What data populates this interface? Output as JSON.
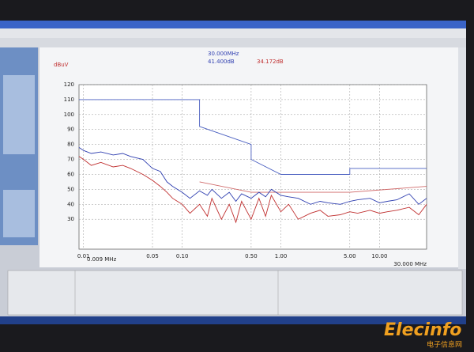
{
  "chart_data": {
    "type": "line",
    "unit_label": "dBuV",
    "marker_frequency": "30.000MHz",
    "marker_values": [
      "41.400dB",
      "34.172dB"
    ],
    "x_range_labels": [
      "0.009 MHz",
      "30.000 MHz"
    ],
    "log_x": true,
    "grid": true,
    "xlim": [
      0.009,
      30
    ],
    "xticks": [
      0.01,
      0.05,
      {
        "value": 0.1,
        "label": "0.10"
      },
      {
        "value": 0.5,
        "label": "0.50"
      },
      {
        "value": 1,
        "label": "1.00"
      },
      {
        "value": 5,
        "label": "5.00"
      },
      {
        "value": 10,
        "label": "10.00"
      }
    ],
    "ylim": [
      10,
      120
    ],
    "yticks": [
      30,
      40,
      50,
      60,
      70,
      80,
      90,
      100,
      110,
      120
    ],
    "series": [
      {
        "color": "#4a5fc0",
        "x": [
          0.009,
          0.15,
          0.15,
          0.5,
          0.5,
          1,
          5,
          5,
          30
        ],
        "values": [
          110,
          110,
          92,
          80,
          70,
          60,
          60,
          64,
          64
        ]
      },
      {
        "color": "#d06a6a",
        "x": [
          0.15,
          0.5,
          5,
          30
        ],
        "values": [
          55,
          48,
          48,
          52
        ]
      },
      {
        "color": "#2f3fb0",
        "x": [
          0.009,
          0.01,
          0.012,
          0.015,
          0.02,
          0.025,
          0.03,
          0.04,
          0.05,
          0.06,
          0.07,
          0.08,
          0.1,
          0.12,
          0.15,
          0.18,
          0.2,
          0.25,
          0.3,
          0.35,
          0.4,
          0.5,
          0.6,
          0.7,
          0.8,
          1,
          1.2,
          1.5,
          2,
          2.5,
          3,
          4,
          5,
          6,
          8,
          10,
          12,
          15,
          20,
          25,
          30
        ],
        "values": [
          78,
          76,
          74,
          75,
          73,
          74,
          72,
          70,
          64,
          62,
          55,
          52,
          48,
          44,
          49,
          46,
          50,
          44,
          48,
          42,
          47,
          44,
          48,
          45,
          50,
          46,
          45,
          44,
          40,
          42,
          41,
          40,
          42,
          43,
          44,
          41,
          42,
          43,
          47,
          40,
          44
        ]
      },
      {
        "color": "#c03030",
        "x": [
          0.009,
          0.01,
          0.012,
          0.015,
          0.02,
          0.025,
          0.03,
          0.04,
          0.05,
          0.06,
          0.07,
          0.08,
          0.1,
          0.12,
          0.15,
          0.18,
          0.2,
          0.25,
          0.3,
          0.35,
          0.4,
          0.5,
          0.6,
          0.7,
          0.8,
          1,
          1.2,
          1.5,
          2,
          2.5,
          3,
          4,
          5,
          6,
          8,
          10,
          12,
          15,
          20,
          25,
          30
        ],
        "values": [
          72,
          70,
          66,
          68,
          65,
          66,
          64,
          60,
          56,
          52,
          48,
          44,
          40,
          34,
          40,
          32,
          44,
          30,
          40,
          28,
          42,
          30,
          44,
          32,
          46,
          35,
          40,
          30,
          34,
          36,
          32,
          33,
          35,
          34,
          36,
          34,
          35,
          36,
          38,
          33,
          40
        ]
      }
    ]
  },
  "watermark": {
    "brand": "Elecinfo",
    "subtitle": "电子信息网"
  }
}
